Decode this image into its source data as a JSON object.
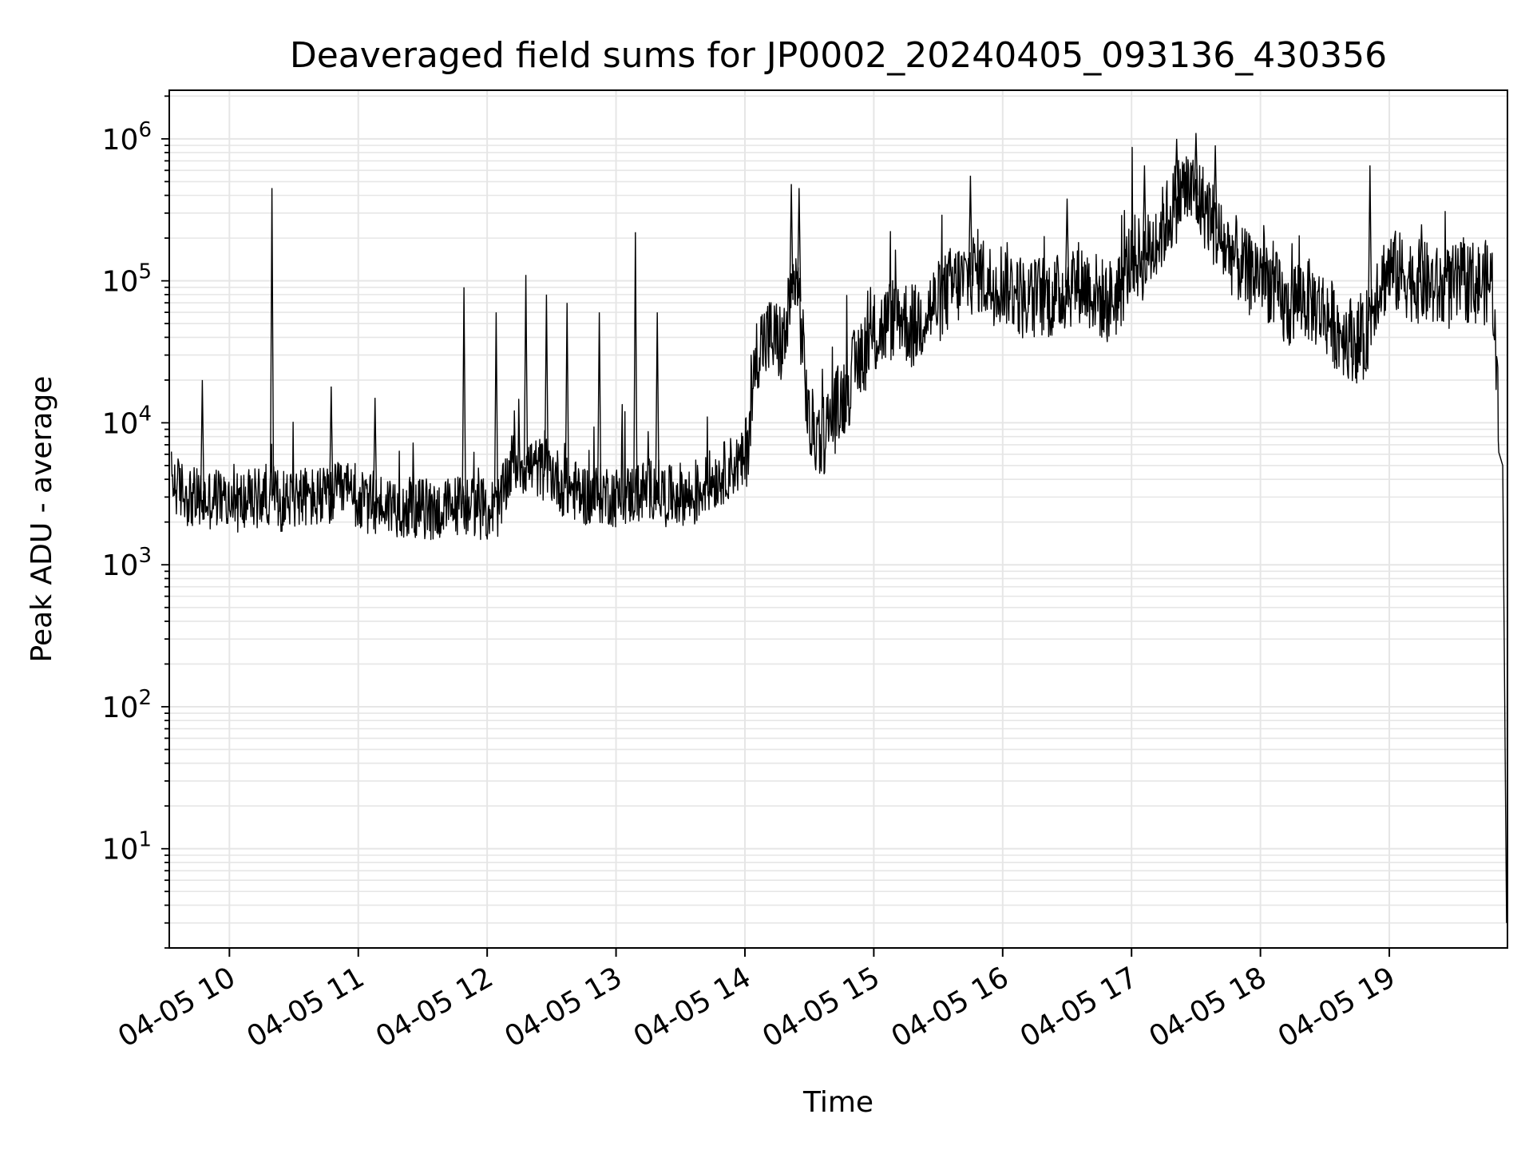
{
  "chart_data": {
    "type": "line",
    "title": "Deaveraged field sums for JP0002_20240405_093136_430356",
    "xlabel": "Time",
    "ylabel": "Peak ADU - average",
    "yscale": "log",
    "ylim": [
      2,
      2200000
    ],
    "xlim": [
      "04-05 09:32",
      "04-05 19:55"
    ],
    "grid": true,
    "x_tick_labels": [
      "04-05 10",
      "04-05 11",
      "04-05 12",
      "04-05 13",
      "04-05 14",
      "04-05 15",
      "04-05 16",
      "04-05 17",
      "04-05 18",
      "04-05 19"
    ],
    "x_tick_hours": [
      10,
      11,
      12,
      13,
      14,
      15,
      16,
      17,
      18,
      19
    ],
    "y_tick_labels": [
      {
        "base": "10",
        "exp": "1",
        "value": 10
      },
      {
        "base": "10",
        "exp": "2",
        "value": 100
      },
      {
        "base": "10",
        "exp": "3",
        "value": 1000
      },
      {
        "base": "10",
        "exp": "4",
        "value": 10000
      },
      {
        "base": "10",
        "exp": "5",
        "value": 100000
      },
      {
        "base": "10",
        "exp": "6",
        "value": 1000000
      }
    ],
    "line_color": "#000000",
    "grid_color": "#e6e6e6",
    "series": [
      {
        "x_hours": [
          9.55,
          9.6,
          9.7,
          9.8,
          9.9,
          10.0,
          10.1,
          10.2,
          10.3,
          10.4,
          10.5,
          10.6,
          10.7,
          10.8,
          10.9,
          11.0,
          11.1,
          11.2,
          11.3,
          11.4,
          11.5,
          11.6,
          11.7,
          11.8,
          11.9,
          12.0,
          12.1,
          12.2,
          12.3,
          12.4,
          12.5,
          12.6,
          12.7,
          12.8,
          12.9,
          13.0,
          13.1,
          13.2,
          13.3,
          13.4,
          13.5,
          13.6,
          13.7,
          13.8,
          13.9,
          14.0,
          14.1,
          14.2,
          14.3,
          14.4,
          14.5,
          14.6,
          14.7,
          14.8,
          14.9,
          15.0,
          15.1,
          15.2,
          15.3,
          15.4,
          15.5,
          15.6,
          15.7,
          15.8,
          15.9,
          16.0,
          16.1,
          16.2,
          16.3,
          16.4,
          16.5,
          16.6,
          16.7,
          16.8,
          16.9,
          17.0,
          17.1,
          17.2,
          17.3,
          17.4,
          17.5,
          17.6,
          17.7,
          17.8,
          17.9,
          18.0,
          18.1,
          18.2,
          18.3,
          18.4,
          18.5,
          18.6,
          18.7,
          18.8,
          18.9,
          19.0,
          19.1,
          19.2,
          19.3,
          19.4,
          19.5,
          19.6,
          19.7,
          19.8,
          19.85,
          19.88,
          19.91
        ],
        "values": [
          4000,
          3500,
          3000,
          2800,
          3000,
          2700,
          2800,
          2900,
          3200,
          2800,
          3100,
          3000,
          2900,
          3100,
          3300,
          2800,
          2600,
          2700,
          2600,
          2500,
          2500,
          2400,
          2500,
          2700,
          2600,
          2400,
          2600,
          5500,
          5000,
          4800,
          4500,
          3500,
          3300,
          3000,
          3200,
          3000,
          3100,
          3300,
          3500,
          3000,
          3200,
          2900,
          3800,
          4200,
          5000,
          5200,
          35000,
          40000,
          35000,
          120000,
          9000,
          8000,
          12000,
          18000,
          30000,
          40000,
          50000,
          60000,
          45000,
          60000,
          70000,
          90000,
          100000,
          120000,
          95000,
          100000,
          85000,
          70000,
          80000,
          75000,
          90000,
          100000,
          85000,
          70000,
          80000,
          150000,
          140000,
          200000,
          300000,
          450000,
          400000,
          300000,
          180000,
          150000,
          110000,
          120000,
          90000,
          60000,
          80000,
          70000,
          60000,
          45000,
          40000,
          35000,
          90000,
          120000,
          110000,
          100000,
          95000,
          85000,
          90000,
          100000,
          95000,
          100000,
          9000,
          5000,
          3
        ]
      }
    ],
    "spikes": [
      {
        "x_hours": 9.79,
        "value": 20000
      },
      {
        "x_hours": 10.33,
        "value": 450000
      },
      {
        "x_hours": 10.79,
        "value": 18000
      },
      {
        "x_hours": 11.13,
        "value": 15000
      },
      {
        "x_hours": 11.82,
        "value": 90000
      },
      {
        "x_hours": 12.07,
        "value": 60000
      },
      {
        "x_hours": 12.3,
        "value": 110000
      },
      {
        "x_hours": 12.46,
        "value": 80000
      },
      {
        "x_hours": 12.62,
        "value": 70000
      },
      {
        "x_hours": 12.87,
        "value": 60000
      },
      {
        "x_hours": 13.15,
        "value": 220000
      },
      {
        "x_hours": 13.32,
        "value": 60000
      },
      {
        "x_hours": 14.36,
        "value": 480000
      },
      {
        "x_hours": 14.42,
        "value": 450000
      },
      {
        "x_hours": 15.75,
        "value": 550000
      },
      {
        "x_hours": 16.5,
        "value": 380000
      },
      {
        "x_hours": 17.1,
        "value": 650000
      },
      {
        "x_hours": 17.35,
        "value": 1000000
      },
      {
        "x_hours": 17.5,
        "value": 1100000
      },
      {
        "x_hours": 17.65,
        "value": 900000
      },
      {
        "x_hours": 18.85,
        "value": 650000
      },
      {
        "x_hours": 19.25,
        "value": 250000
      }
    ]
  }
}
